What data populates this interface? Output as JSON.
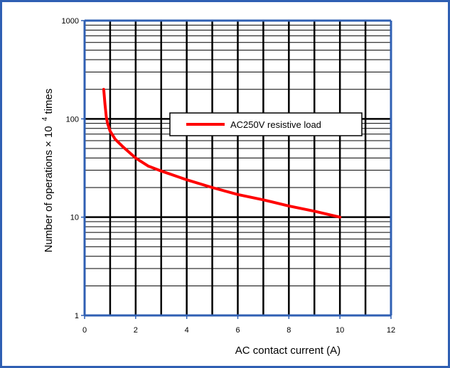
{
  "chart_data": {
    "type": "line",
    "xlabel": "AC contact current (A)",
    "ylabel_main": "Number of operations × 10",
    "ylabel_exp": "4",
    "ylabel_tail": " times",
    "xlim": [
      0,
      12
    ],
    "ylim": [
      1,
      1000
    ],
    "yscale": "log",
    "xticks": [
      "0",
      "2",
      "4",
      "6",
      "8",
      "10",
      "12"
    ],
    "yticks": [
      "1",
      "10",
      "100",
      "1000"
    ],
    "grid": true,
    "legend_position": "upper-right",
    "series": [
      {
        "name": "AC250V resistive load",
        "color": "#ff0000",
        "x": [
          0.75,
          0.8,
          0.85,
          0.9,
          1.0,
          1.2,
          1.5,
          2.0,
          2.5,
          3.0,
          4.0,
          5.0,
          6.0,
          7.0,
          8.0,
          9.0,
          10.0
        ],
        "y": [
          200,
          140,
          105,
          90,
          75,
          62,
          52,
          40,
          33,
          29.5,
          24,
          20,
          17,
          15,
          13,
          11.5,
          10
        ]
      }
    ],
    "colors": {
      "frame": "#2f5fb3",
      "axis": "#2f5fb3",
      "grid": "#000000"
    }
  }
}
